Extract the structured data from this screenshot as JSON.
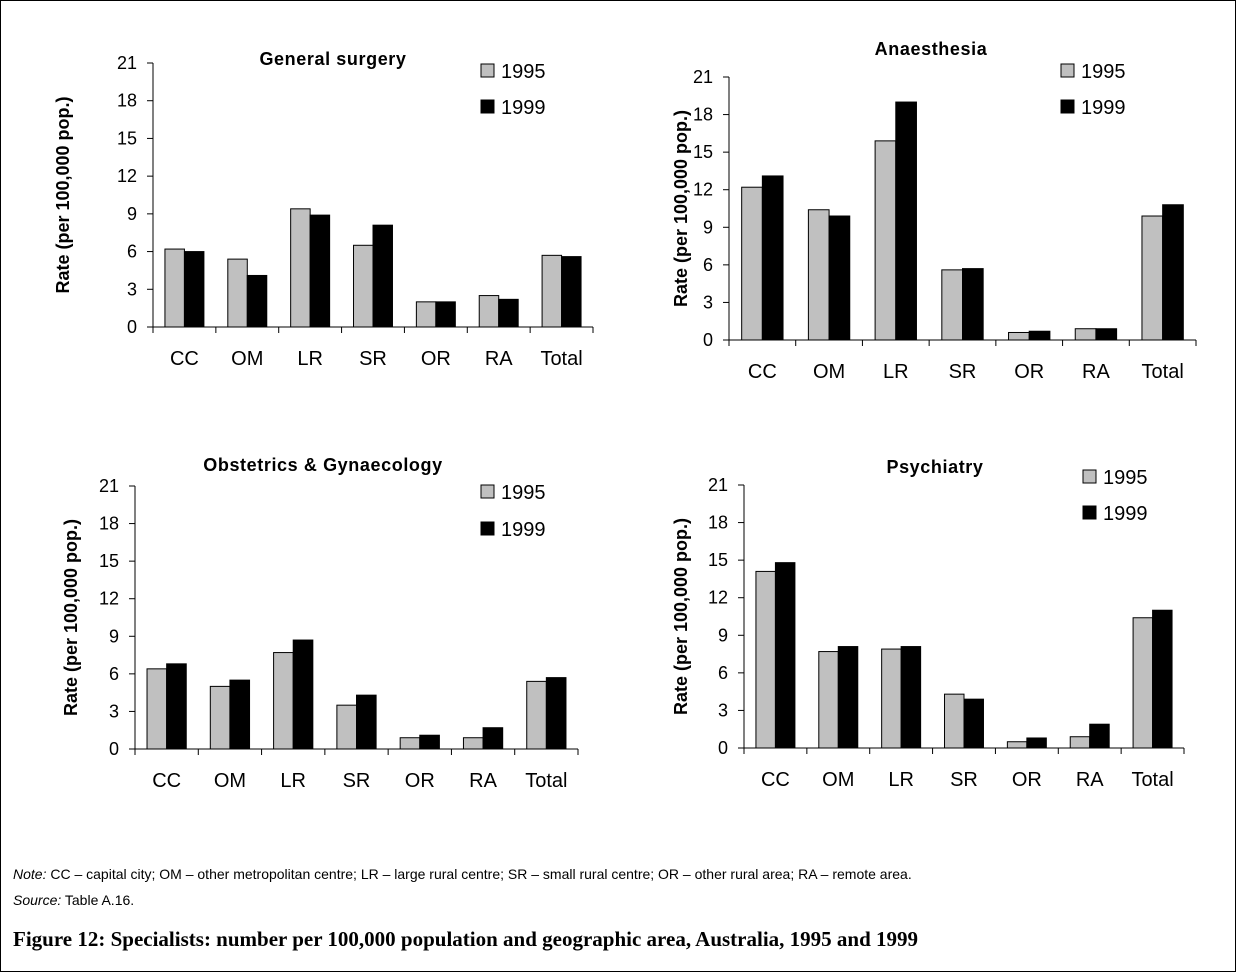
{
  "chart_data": [
    {
      "type": "bar",
      "title": "General surgery",
      "ylabel": "Rate (per 100,000 pop.)",
      "xlabel": "",
      "ylim": [
        0,
        21
      ],
      "yticks": [
        0,
        3,
        6,
        9,
        12,
        15,
        18,
        21
      ],
      "categories": [
        "CC",
        "OM",
        "LR",
        "SR",
        "OR",
        "RA",
        "Total"
      ],
      "series": [
        {
          "name": "1995",
          "values": [
            6.2,
            5.4,
            9.4,
            6.5,
            2.0,
            2.5,
            5.7
          ]
        },
        {
          "name": "1999",
          "values": [
            6.0,
            4.1,
            8.9,
            8.1,
            2.0,
            2.2,
            5.6
          ]
        }
      ],
      "legend_position": "top-right",
      "grid": false
    },
    {
      "type": "bar",
      "title": "Anaesthesia",
      "ylabel": "Rate (per 100,000 pop.)",
      "xlabel": "",
      "ylim": [
        0,
        21
      ],
      "yticks": [
        0,
        3,
        6,
        9,
        12,
        15,
        18,
        21
      ],
      "categories": [
        "CC",
        "OM",
        "LR",
        "SR",
        "OR",
        "RA",
        "Total"
      ],
      "series": [
        {
          "name": "1995",
          "values": [
            12.2,
            10.4,
            15.9,
            5.6,
            0.6,
            0.9,
            9.9
          ]
        },
        {
          "name": "1999",
          "values": [
            13.1,
            9.9,
            19.0,
            5.7,
            0.7,
            0.9,
            10.8
          ]
        }
      ],
      "legend_position": "top-right",
      "grid": false
    },
    {
      "type": "bar",
      "title": "Obstetrics & Gynaecology",
      "ylabel": "Rate (per 100,000 pop.)",
      "xlabel": "",
      "ylim": [
        0,
        21
      ],
      "yticks": [
        0,
        3,
        6,
        9,
        12,
        15,
        18,
        21
      ],
      "categories": [
        "CC",
        "OM",
        "LR",
        "SR",
        "OR",
        "RA",
        "Total"
      ],
      "series": [
        {
          "name": "1995",
          "values": [
            6.4,
            5.0,
            7.7,
            3.5,
            0.9,
            0.9,
            5.4
          ]
        },
        {
          "name": "1999",
          "values": [
            6.8,
            5.5,
            8.7,
            4.3,
            1.1,
            1.7,
            5.7
          ]
        }
      ],
      "legend_position": "top-right",
      "grid": false
    },
    {
      "type": "bar",
      "title": "Psychiatry",
      "ylabel": "Rate (per 100,000 pop.)",
      "xlabel": "",
      "ylim": [
        0,
        21
      ],
      "yticks": [
        0,
        3,
        6,
        9,
        12,
        15,
        18,
        21
      ],
      "categories": [
        "CC",
        "OM",
        "LR",
        "SR",
        "OR",
        "RA",
        "Total"
      ],
      "series": [
        {
          "name": "1995",
          "values": [
            14.1,
            7.7,
            7.9,
            4.3,
            0.5,
            0.9,
            10.4
          ]
        },
        {
          "name": "1999",
          "values": [
            14.8,
            8.1,
            8.1,
            3.9,
            0.8,
            1.9,
            11.0
          ]
        }
      ],
      "legend_position": "top-right",
      "grid": false
    }
  ],
  "colors": {
    "series_1995": "#c0c0c0",
    "series_1999": "#000000",
    "axis": "#000000"
  },
  "notes": {
    "note_label": "Note:",
    "note_text": " CC – capital city; OM – other metropolitan centre; LR – large rural centre; SR – small rural centre; OR – other rural area; RA – remote area.",
    "source_label": "Source:",
    "source_text": " Table A.16."
  },
  "caption": "Figure 12: Specialists: number per 100,000 population and geographic area, Australia, 1995 and 1999"
}
